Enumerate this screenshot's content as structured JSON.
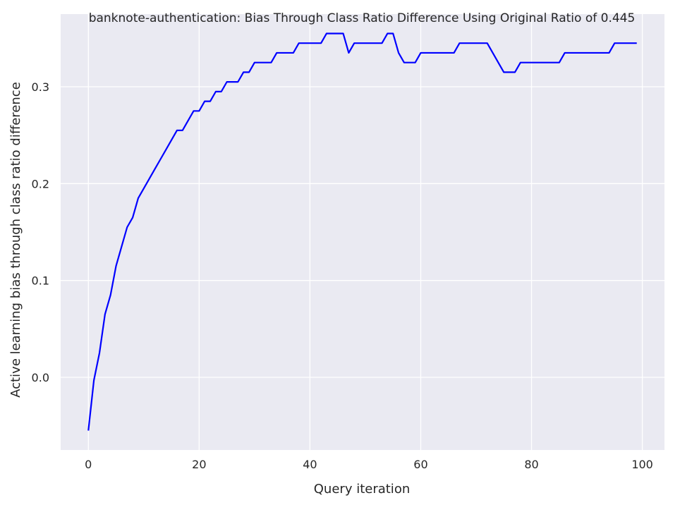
{
  "chart_data": {
    "type": "line",
    "title": "banknote-authentication: Bias Through Class Ratio Difference Using Original Ratio of 0.445",
    "xlabel": "Query iteration",
    "ylabel": "Active learning bias through class ratio difference",
    "xlim": [
      -5,
      104
    ],
    "ylim": [
      -0.075,
      0.375
    ],
    "xticks": [
      0,
      20,
      40,
      60,
      80,
      100
    ],
    "yticks": [
      0.0,
      0.1,
      0.2,
      0.3
    ],
    "xtick_labels": [
      "0",
      "20",
      "40",
      "60",
      "80",
      "100"
    ],
    "ytick_labels": [
      "0.0",
      "0.1",
      "0.2",
      "0.3"
    ],
    "grid": true,
    "background": "#eaeaf2",
    "grid_color": "#ffffff",
    "series": [
      {
        "color": "#0000ff",
        "x": [
          0,
          1,
          2,
          3,
          4,
          5,
          6,
          7,
          8,
          9,
          10,
          11,
          12,
          13,
          14,
          15,
          16,
          17,
          18,
          19,
          20,
          21,
          22,
          23,
          24,
          25,
          26,
          27,
          28,
          29,
          30,
          31,
          32,
          33,
          34,
          35,
          36,
          37,
          38,
          39,
          40,
          41,
          42,
          43,
          44,
          45,
          46,
          47,
          48,
          49,
          50,
          51,
          52,
          53,
          54,
          55,
          56,
          57,
          58,
          59,
          60,
          61,
          62,
          63,
          64,
          65,
          66,
          67,
          68,
          69,
          70,
          71,
          72,
          73,
          74,
          75,
          76,
          77,
          78,
          79,
          80,
          81,
          82,
          83,
          84,
          85,
          86,
          87,
          88,
          89,
          90,
          91,
          92,
          93,
          94,
          95,
          96,
          97,
          98,
          99
        ],
        "values": [
          -0.055,
          -0.003,
          0.025,
          0.065,
          0.085,
          0.115,
          0.135,
          0.155,
          0.165,
          0.185,
          0.195,
          0.205,
          0.215,
          0.225,
          0.235,
          0.245,
          0.255,
          0.255,
          0.265,
          0.275,
          0.275,
          0.285,
          0.285,
          0.295,
          0.295,
          0.305,
          0.305,
          0.305,
          0.315,
          0.315,
          0.325,
          0.325,
          0.325,
          0.325,
          0.335,
          0.335,
          0.335,
          0.335,
          0.345,
          0.345,
          0.345,
          0.345,
          0.345,
          0.355,
          0.355,
          0.355,
          0.355,
          0.335,
          0.345,
          0.345,
          0.345,
          0.345,
          0.345,
          0.345,
          0.355,
          0.355,
          0.335,
          0.325,
          0.325,
          0.325,
          0.335,
          0.335,
          0.335,
          0.335,
          0.335,
          0.335,
          0.335,
          0.345,
          0.345,
          0.345,
          0.345,
          0.345,
          0.345,
          0.335,
          0.325,
          0.315,
          0.315,
          0.315,
          0.325,
          0.325,
          0.325,
          0.325,
          0.325,
          0.325,
          0.325,
          0.325,
          0.335,
          0.335,
          0.335,
          0.335,
          0.335,
          0.335,
          0.335,
          0.335,
          0.335,
          0.345,
          0.345,
          0.345,
          0.345,
          0.345
        ]
      }
    ]
  }
}
